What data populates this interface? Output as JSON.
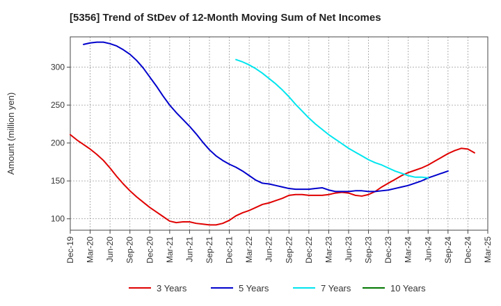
{
  "chart_data": {
    "type": "line",
    "title": "[5356]  Trend of StDev of 12-Month Moving Sum of Net Incomes",
    "xlabel": "",
    "ylabel": "Amount (million yen)",
    "x_tick_labels": [
      "Dec-19",
      "Mar-20",
      "Jun-20",
      "Sep-20",
      "Dec-20",
      "Mar-21",
      "Jun-21",
      "Sep-21",
      "Dec-21",
      "Mar-22",
      "Jun-22",
      "Sep-22",
      "Dec-22",
      "Mar-23",
      "Jun-23",
      "Sep-23",
      "Dec-23",
      "Mar-24",
      "Jun-24",
      "Sep-24",
      "Dec-24",
      "Mar-25"
    ],
    "y_ticks": [
      100,
      150,
      200,
      250,
      300
    ],
    "ylim": [
      85,
      340
    ],
    "grid": true,
    "legend_position": "bottom",
    "series": [
      {
        "name": "3 Years",
        "color": "#e00000",
        "start_index": 0,
        "values": [
          211,
          204,
          198,
          192,
          185,
          177,
          167,
          156,
          146,
          137,
          129,
          122,
          115,
          109,
          103,
          97,
          95,
          96,
          96,
          94,
          93,
          92,
          92,
          94,
          98,
          104,
          108,
          111,
          115,
          119,
          121,
          124,
          127,
          131,
          132,
          132,
          131,
          131,
          131,
          132,
          134,
          135,
          134,
          131,
          130,
          132,
          136,
          142,
          147,
          152,
          157,
          161,
          164,
          167,
          171,
          176,
          181,
          186,
          190,
          193,
          192,
          187
        ]
      },
      {
        "name": "5 Years",
        "color": "#0000cc",
        "start_index": 2,
        "values": [
          330,
          332,
          333,
          333,
          331,
          328,
          323,
          317,
          309,
          299,
          287,
          275,
          262,
          250,
          240,
          231,
          222,
          212,
          201,
          191,
          183,
          177,
          172,
          168,
          163,
          157,
          151,
          147,
          146,
          144,
          142,
          140,
          139,
          139,
          139,
          140,
          141,
          138,
          136,
          136,
          136,
          137,
          137,
          136,
          136,
          137,
          138,
          140,
          142,
          144,
          147,
          150,
          154,
          157,
          160,
          163
        ]
      },
      {
        "name": "7 Years",
        "color": "#00e5ee",
        "start_index": 25,
        "values": [
          310,
          307,
          303,
          298,
          292,
          285,
          278,
          270,
          261,
          251,
          242,
          233,
          225,
          218,
          211,
          205,
          199,
          193,
          188,
          183,
          178,
          174,
          171,
          167,
          163,
          160,
          157,
          155,
          155,
          154
        ]
      },
      {
        "name": "10 Years",
        "color": "#007700",
        "start_index": 0,
        "values": []
      }
    ]
  }
}
